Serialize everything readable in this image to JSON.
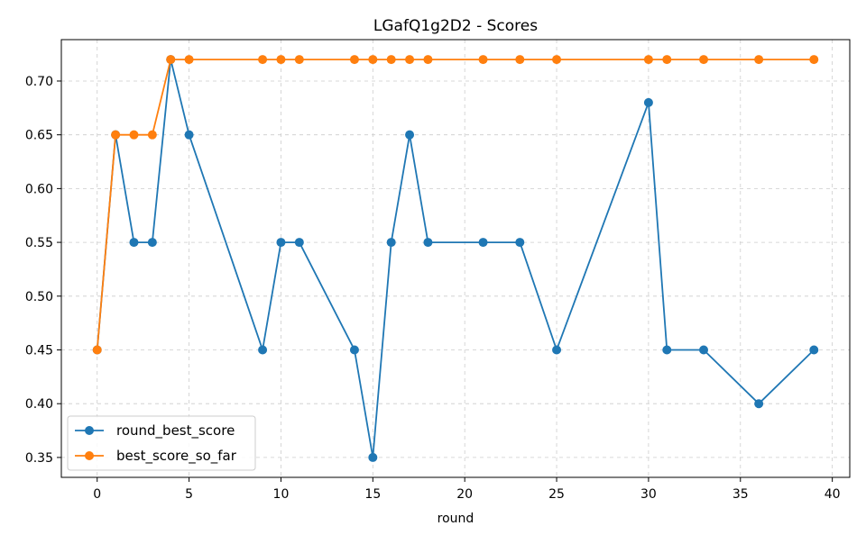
{
  "chart_data": {
    "type": "line",
    "title": "LGafQ1g2D2 - Scores",
    "xlabel": "round",
    "ylabel": "",
    "xlim": [
      -1.95,
      40.95
    ],
    "ylim": [
      0.3315,
      0.7385
    ],
    "x_ticks": [
      0,
      5,
      10,
      15,
      20,
      25,
      30,
      35,
      40
    ],
    "y_ticks": [
      0.35,
      0.4,
      0.45,
      0.5,
      0.55,
      0.6,
      0.65,
      0.7
    ],
    "grid": true,
    "legend_position": "lower-left",
    "x": [
      0,
      1,
      2,
      3,
      4,
      5,
      9,
      10,
      11,
      14,
      15,
      16,
      17,
      18,
      21,
      23,
      25,
      30,
      31,
      33,
      36,
      39
    ],
    "series": [
      {
        "name": "round_best_score",
        "color": "#1f77b4",
        "values": [
          0.45,
          0.65,
          0.55,
          0.55,
          0.72,
          0.65,
          0.45,
          0.55,
          0.55,
          0.45,
          0.35,
          0.55,
          0.65,
          0.55,
          0.55,
          0.55,
          0.45,
          0.68,
          0.45,
          0.45,
          0.4,
          0.45
        ]
      },
      {
        "name": "best_score_so_far",
        "color": "#ff7f0e",
        "values": [
          0.45,
          0.65,
          0.65,
          0.65,
          0.72,
          0.72,
          0.72,
          0.72,
          0.72,
          0.72,
          0.72,
          0.72,
          0.72,
          0.72,
          0.72,
          0.72,
          0.72,
          0.72,
          0.72,
          0.72,
          0.72,
          0.72
        ]
      }
    ]
  }
}
